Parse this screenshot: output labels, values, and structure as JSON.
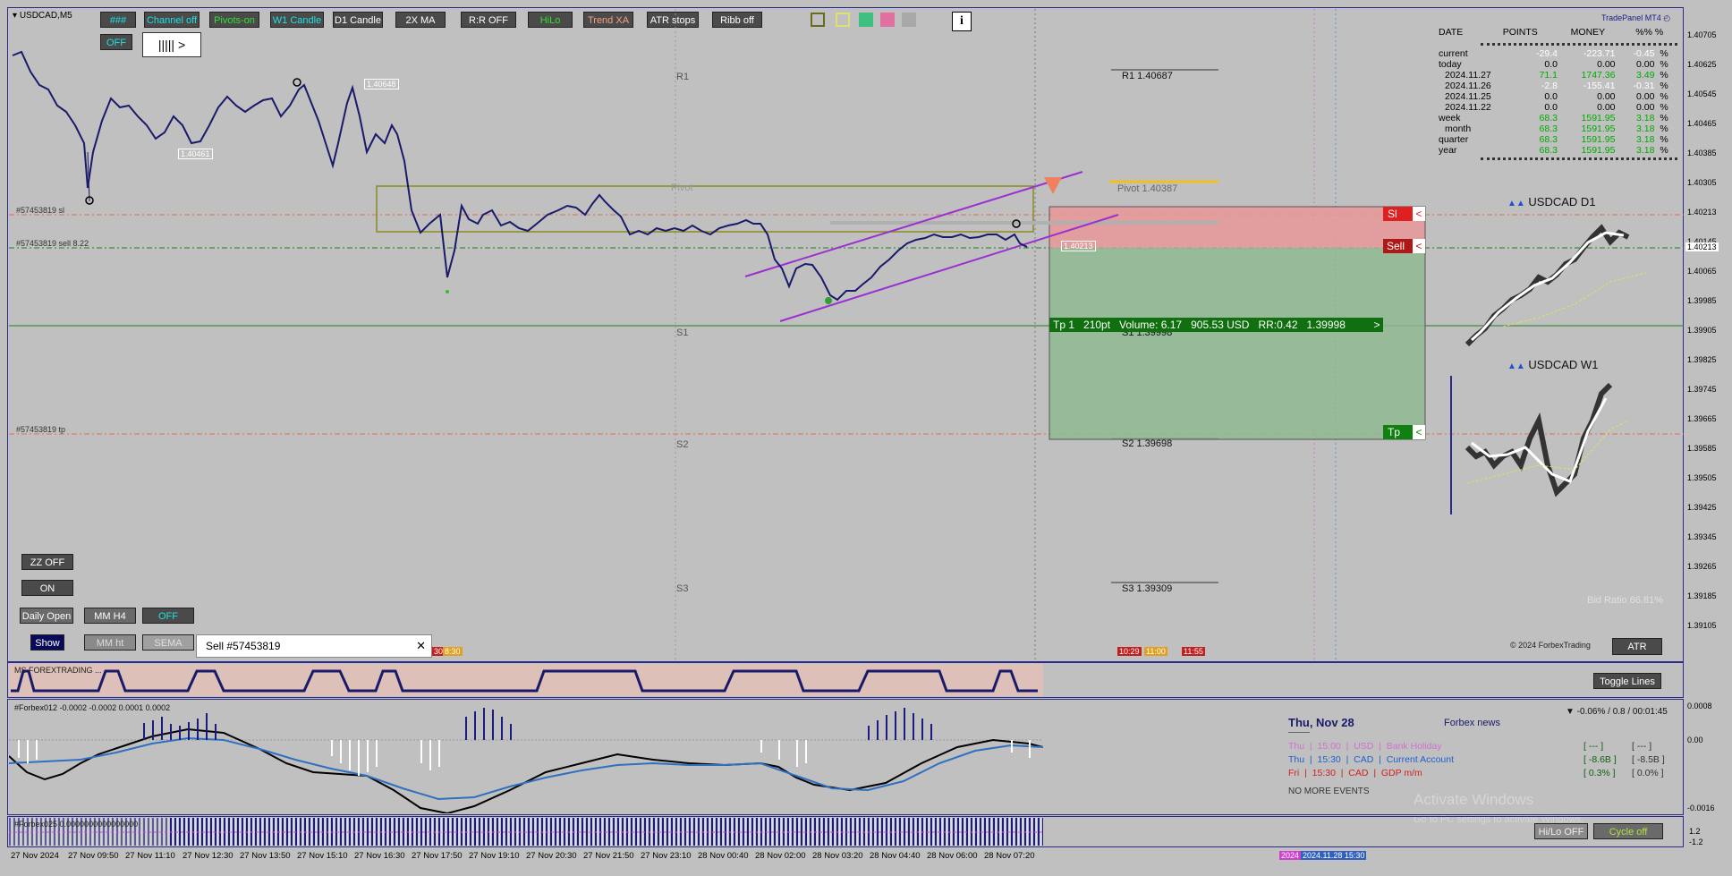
{
  "symbol_header": "USDCAD,M5",
  "toolbar": {
    "row1": [
      {
        "label": "###",
        "style": "cyan"
      },
      {
        "label": "Channel off",
        "style": "cyan"
      },
      {
        "label": "Pivots-on",
        "style": "green"
      },
      {
        "label": "W1 Candle",
        "style": "cyan"
      },
      {
        "label": "D1 Candle",
        "style": ""
      },
      {
        "label": "2X MA",
        "style": ""
      },
      {
        "label": "R:R OFF",
        "style": ""
      },
      {
        "label": "HiLo",
        "style": "green"
      },
      {
        "label": "Trend XA",
        "style": "salmon"
      },
      {
        "label": "ATR stops",
        "style": ""
      },
      {
        "label": "Ribb off",
        "style": ""
      }
    ],
    "off_label": "OFF",
    "slider_label": "||||| >",
    "info_label": "i",
    "color_swatches": [
      "#c0c0c0",
      "#e0e0a0",
      "#40c080",
      "#e070a0",
      "#a8a8a8"
    ]
  },
  "brand": "TradePanel MT4",
  "stats": {
    "headers": [
      "DATE",
      "POINTS",
      "MONEY",
      "%%",
      "%"
    ],
    "rows": [
      {
        "label": "current",
        "points": "-29.4",
        "money": "-223.71",
        "pct": "-0.45",
        "color": "#ffffff"
      },
      {
        "label": "today",
        "points": "0.0",
        "money": "0.00",
        "pct": "0.00",
        "color": "#000000"
      },
      {
        "label": "2024.11.27",
        "points": "71.1",
        "money": "1747.36",
        "pct": "3.49",
        "color": "#00aa00"
      },
      {
        "label": "2024.11.26",
        "points": "-2.8",
        "money": "-155.41",
        "pct": "-0.31",
        "color": "#ffffff"
      },
      {
        "label": "2024.11.25",
        "points": "0.0",
        "money": "0.00",
        "pct": "0.00",
        "color": "#000000"
      },
      {
        "label": "2024.11.22",
        "points": "0.0",
        "money": "0.00",
        "pct": "0.00",
        "color": "#000000"
      },
      {
        "label": "week",
        "points": "68.3",
        "money": "1591.95",
        "pct": "3.18",
        "color": "#00aa00"
      },
      {
        "label": "month",
        "points": "68.3",
        "money": "1591.95",
        "pct": "3.18",
        "color": "#00aa00"
      },
      {
        "label": "quarter",
        "points": "68.3",
        "money": "1591.95",
        "pct": "3.18",
        "color": "#00aa00"
      },
      {
        "label": "year",
        "points": "68.3",
        "money": "1591.95",
        "pct": "3.18",
        "color": "#00aa00"
      }
    ],
    "pct_sign": "%"
  },
  "mini_charts": {
    "d1_title": "USDCAD D1",
    "w1_title": "USDCAD W1",
    "marker": "▲▲"
  },
  "price_axis": [
    "1.40705",
    "1.40625",
    "1.40545",
    "1.40465",
    "1.40385",
    "1.40305",
    "1.40213",
    "1.40145",
    "1.40065",
    "1.39985",
    "1.39905",
    "1.39825",
    "1.39745",
    "1.39665",
    "1.39585",
    "1.39505",
    "1.39425",
    "1.39345",
    "1.39265",
    "1.39185",
    "1.39105"
  ],
  "current_price": "1.40213",
  "levels": {
    "r1": "R1 1.40687",
    "r1_left": "R1",
    "pivot": "Pivot 1.40387",
    "pivot_left": "Pivot",
    "s1": "S1 1.39998",
    "s1_left": "S1",
    "s2": "S2 1.39698",
    "s2_left": "S2",
    "s3": "S3 1.39309",
    "s3_left": "S3"
  },
  "trade": {
    "sl_line": "#57453819 sl",
    "sell_line": "#57453819 sell 8.22",
    "tp_line": "#57453819 tp",
    "sl_btn": "Sl",
    "sell_btn": "Sell",
    "tp_btn": "Tp",
    "info": "Tp 1   210pt   Volume: 6.17   905.53 USD   RR:0.42   1.39998",
    "chevron": "<",
    "arrow": ">",
    "popup_title": "Sell  #57453819",
    "popup_close": "✕"
  },
  "price_tags": {
    "high": "1.40648",
    "low": "1.40461",
    "current": "1.40213"
  },
  "left_buttons": {
    "zz": "ZZ OFF",
    "on": "ON",
    "daily_open": "Daily Open",
    "mm_h4": "MM H4",
    "off2": "OFF",
    "show": "Show",
    "mm_ht": "MM ht",
    "sema": "SEMA"
  },
  "session_tags": {
    "a": "30",
    "b": "8:30",
    "c": "10:29",
    "d": "11:00",
    "e": "11:55"
  },
  "copyright": "© 2024 ForbexTrading",
  "atr_btn": "ATR",
  "bid_ratio": "Bid Ratio 66.81%",
  "toggle_lines": "Toggle Lines",
  "ind1_label": "MS FOREXTRADING ...",
  "ind2": {
    "label": "#Forbex012 -0.0002 -0.0002 0.0001 0.0002",
    "axis_top": "0.0008",
    "axis_mid": "0.00",
    "axis_bot": "-0.0016"
  },
  "ind3_label": "#Forbex025 0.0000000000000000",
  "ind3_axis": [
    "1.2",
    "-1.2"
  ],
  "news": {
    "date": "Thu, Nov 28",
    "title": "Forbex news",
    "summary": "▼ -0.06% / 0.8 / 00:01:45",
    "events": [
      {
        "text": "Thu  |  15:00  |  USD  |  Bank Holiday",
        "vals": "[ --- ]",
        "vals2": "[ --- ]",
        "color": "#d070d0"
      },
      {
        "text": "Thu  |  15:30  |  CAD  |  Current Account",
        "vals": "[ -8.6B ]",
        "vals2": "[ -8.5B ]",
        "color": "#2060d0"
      },
      {
        "text": "Fri  |  15:30  |  CAD  |  GDP m/m",
        "vals": "[ 0.3% ]",
        "vals2": "[ 0.0% ]",
        "color": "#d02020"
      }
    ],
    "no_more": "NO MORE EVENTS"
  },
  "watermark": {
    "title": "Activate Windows",
    "sub": "Go to PC settings to activate Windows."
  },
  "bottom_buttons": {
    "hilo": "Hi/Lo OFF",
    "cycle": "Cycle off"
  },
  "time_axis": [
    "27 Nov 2024",
    "27 Nov 09:50",
    "27 Nov 11:10",
    "27 Nov 12:30",
    "27 Nov 13:50",
    "27 Nov 15:10",
    "27 Nov 16:30",
    "27 Nov 17:50",
    "27 Nov 19:10",
    "27 Nov 20:30",
    "27 Nov 21:50",
    "27 Nov 23:10",
    "28 Nov 00:40",
    "28 Nov 02:00",
    "28 Nov 03:20",
    "28 Nov 04:40",
    "28 Nov 06:00",
    "28 Nov 07:20"
  ],
  "time_tag_a": "2024",
  "time_tag_b": "2024.11.28 15:30"
}
